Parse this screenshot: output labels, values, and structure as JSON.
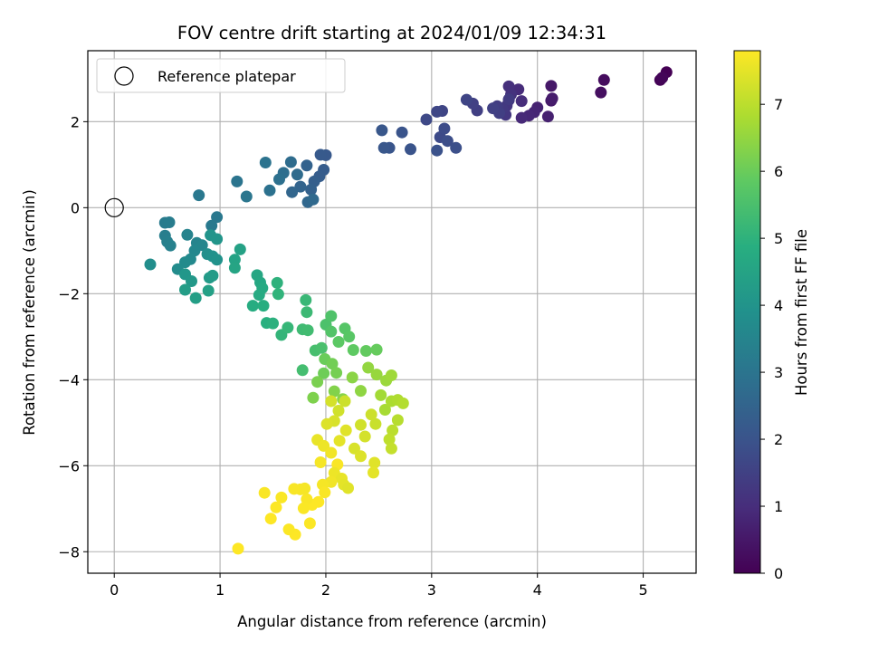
{
  "chart_data": {
    "type": "scatter",
    "title": "FOV centre drift starting at 2024/01/09 12:34:31",
    "xlabel": "Angular distance from reference (arcmin)",
    "ylabel": "Rotation from reference (arcmin)",
    "xlim": [
      -0.25,
      5.5
    ],
    "ylim": [
      -8.5,
      3.65
    ],
    "xticks": [
      0,
      1,
      2,
      3,
      4,
      5
    ],
    "yticks": [
      -8,
      -6,
      -4,
      -2,
      0,
      2
    ],
    "grid": true,
    "legend": {
      "placement": "upper-left",
      "entries": [
        "Reference platepar"
      ]
    },
    "reference_point": {
      "x": 0,
      "y": 0
    },
    "colorbar": {
      "label": "Hours from first FF file",
      "colormap": "viridis",
      "range": [
        0,
        7.8
      ],
      "ticks": [
        0,
        1,
        2,
        3,
        4,
        5,
        6,
        7
      ]
    },
    "series": [
      {
        "color_by": "Hours from first FF file",
        "points": [
          [
            5.22,
            3.15,
            0.0
          ],
          [
            5.16,
            2.97,
            0.05
          ],
          [
            5.18,
            3.02,
            0.1
          ],
          [
            4.63,
            2.97,
            0.25
          ],
          [
            4.6,
            2.68,
            0.3
          ],
          [
            4.13,
            2.83,
            0.5
          ],
          [
            4.13,
            2.49,
            0.55
          ],
          [
            4.14,
            2.54,
            0.6
          ],
          [
            4.1,
            2.12,
            0.7
          ],
          [
            4.0,
            2.33,
            0.75
          ],
          [
            3.97,
            2.22,
            0.8
          ],
          [
            3.92,
            2.14,
            0.85
          ],
          [
            3.85,
            2.09,
            0.9
          ],
          [
            3.82,
            2.75,
            0.95
          ],
          [
            3.85,
            2.48,
            1.0
          ],
          [
            3.73,
            2.82,
            1.05
          ],
          [
            3.75,
            2.63,
            1.1
          ],
          [
            3.73,
            2.5,
            1.15
          ],
          [
            3.71,
            2.37,
            1.2
          ],
          [
            3.7,
            2.16,
            1.25
          ],
          [
            3.67,
            2.3,
            1.3
          ],
          [
            3.73,
            2.52,
            1.35
          ],
          [
            3.62,
            2.36,
            1.4
          ],
          [
            3.64,
            2.2,
            1.45
          ],
          [
            3.58,
            2.31,
            1.5
          ],
          [
            3.43,
            2.26,
            1.45
          ],
          [
            3.39,
            2.42,
            1.5
          ],
          [
            3.33,
            2.51,
            1.6
          ],
          [
            3.1,
            2.25,
            1.6
          ],
          [
            3.05,
            2.23,
            1.65
          ],
          [
            2.95,
            2.05,
            1.7
          ],
          [
            3.08,
            1.64,
            1.75
          ],
          [
            3.12,
            1.84,
            1.8
          ],
          [
            3.15,
            1.55,
            1.85
          ],
          [
            3.23,
            1.39,
            1.9
          ],
          [
            3.05,
            1.33,
            1.95
          ],
          [
            2.8,
            1.36,
            2.0
          ],
          [
            2.72,
            1.75,
            2.0
          ],
          [
            2.6,
            1.39,
            2.05
          ],
          [
            2.55,
            1.39,
            2.1
          ],
          [
            2.53,
            1.8,
            2.1
          ],
          [
            2.0,
            1.22,
            2.15
          ],
          [
            1.95,
            1.23,
            2.2
          ],
          [
            1.98,
            0.88,
            2.25
          ],
          [
            1.94,
            0.73,
            2.3
          ],
          [
            1.89,
            0.61,
            2.35
          ],
          [
            1.86,
            0.42,
            2.4
          ],
          [
            1.82,
            0.98,
            2.45
          ],
          [
            1.76,
            0.49,
            2.5
          ],
          [
            1.68,
            0.36,
            2.55
          ],
          [
            1.83,
            0.13,
            2.6
          ],
          [
            1.88,
            0.19,
            2.65
          ],
          [
            1.73,
            0.77,
            2.7
          ],
          [
            1.67,
            1.06,
            2.75
          ],
          [
            1.6,
            0.81,
            2.8
          ],
          [
            1.56,
            0.66,
            2.85
          ],
          [
            1.47,
            0.4,
            2.9
          ],
          [
            1.43,
            1.05,
            2.95
          ],
          [
            1.16,
            0.61,
            3.0
          ],
          [
            1.25,
            0.26,
            3.05
          ],
          [
            0.8,
            0.29,
            3.1
          ],
          [
            0.97,
            -0.22,
            3.1
          ],
          [
            0.92,
            -0.42,
            3.15
          ],
          [
            0.48,
            -0.35,
            3.2
          ],
          [
            0.52,
            -0.34,
            3.25
          ],
          [
            0.48,
            -0.65,
            3.3
          ],
          [
            0.5,
            -0.79,
            3.35
          ],
          [
            0.53,
            -0.88,
            3.4
          ],
          [
            0.69,
            -0.63,
            3.45
          ],
          [
            0.78,
            -0.82,
            3.5
          ],
          [
            0.83,
            -0.87,
            3.55
          ],
          [
            0.76,
            -1.0,
            3.6
          ],
          [
            0.72,
            -1.2,
            3.65
          ],
          [
            0.67,
            -1.27,
            3.7
          ],
          [
            0.6,
            -1.43,
            3.75
          ],
          [
            0.34,
            -1.32,
            3.8
          ],
          [
            0.88,
            -1.08,
            3.85
          ],
          [
            0.93,
            -1.13,
            3.9
          ],
          [
            0.97,
            -1.21,
            3.95
          ],
          [
            0.91,
            -0.64,
            4.0
          ],
          [
            0.97,
            -0.73,
            4.05
          ],
          [
            0.67,
            -1.55,
            4.1
          ],
          [
            0.73,
            -1.71,
            4.15
          ],
          [
            0.9,
            -1.63,
            4.2
          ],
          [
            0.93,
            -1.58,
            4.25
          ],
          [
            0.67,
            -1.91,
            4.3
          ],
          [
            0.77,
            -2.1,
            4.35
          ],
          [
            0.89,
            -1.93,
            4.4
          ],
          [
            1.19,
            -0.97,
            4.45
          ],
          [
            1.14,
            -1.21,
            4.5
          ],
          [
            1.14,
            -1.4,
            4.55
          ],
          [
            1.35,
            -1.57,
            4.6
          ],
          [
            1.38,
            -1.74,
            4.65
          ],
          [
            1.4,
            -1.87,
            4.7
          ],
          [
            1.37,
            -2.03,
            4.75
          ],
          [
            1.31,
            -2.28,
            4.8
          ],
          [
            1.41,
            -2.28,
            4.85
          ],
          [
            1.44,
            -2.68,
            4.9
          ],
          [
            1.5,
            -2.69,
            4.95
          ],
          [
            1.54,
            -1.75,
            5.0
          ],
          [
            1.55,
            -2.01,
            5.05
          ],
          [
            1.58,
            -2.96,
            5.1
          ],
          [
            1.64,
            -2.79,
            5.15
          ],
          [
            1.81,
            -2.15,
            5.2
          ],
          [
            1.82,
            -2.43,
            5.25
          ],
          [
            1.78,
            -2.83,
            5.3
          ],
          [
            1.83,
            -2.85,
            5.35
          ],
          [
            1.78,
            -3.78,
            5.4
          ],
          [
            1.9,
            -3.32,
            5.45
          ],
          [
            1.96,
            -3.26,
            5.5
          ],
          [
            2.0,
            -2.72,
            5.55
          ],
          [
            2.05,
            -2.52,
            5.6
          ],
          [
            2.05,
            -2.88,
            5.65
          ],
          [
            2.18,
            -2.81,
            5.7
          ],
          [
            2.22,
            -3.0,
            5.75
          ],
          [
            2.12,
            -3.12,
            5.8
          ],
          [
            2.26,
            -3.31,
            5.85
          ],
          [
            2.38,
            -3.33,
            5.9
          ],
          [
            2.48,
            -3.3,
            5.95
          ],
          [
            1.99,
            -3.52,
            6.0
          ],
          [
            1.98,
            -3.85,
            6.05
          ],
          [
            2.06,
            -3.63,
            6.1
          ],
          [
            2.1,
            -3.84,
            6.15
          ],
          [
            1.92,
            -4.05,
            6.2
          ],
          [
            1.88,
            -4.42,
            6.25
          ],
          [
            2.08,
            -4.27,
            6.3
          ],
          [
            2.16,
            -4.45,
            6.35
          ],
          [
            2.25,
            -3.95,
            6.4
          ],
          [
            2.33,
            -4.26,
            6.45
          ],
          [
            2.4,
            -3.72,
            6.5
          ],
          [
            2.48,
            -3.88,
            6.55
          ],
          [
            2.57,
            -4.02,
            6.6
          ],
          [
            2.62,
            -3.9,
            6.65
          ],
          [
            2.52,
            -4.36,
            6.7
          ],
          [
            2.56,
            -4.7,
            6.75
          ],
          [
            2.62,
            -4.5,
            6.8
          ],
          [
            2.68,
            -4.47,
            6.85
          ],
          [
            2.73,
            -4.55,
            6.9
          ],
          [
            2.68,
            -4.94,
            6.95
          ],
          [
            2.63,
            -5.18,
            7.0
          ],
          [
            2.6,
            -5.39,
            7.05
          ],
          [
            2.62,
            -5.6,
            7.1
          ],
          [
            2.47,
            -5.03,
            7.15
          ],
          [
            2.43,
            -4.81,
            7.2
          ],
          [
            2.33,
            -5.05,
            7.25
          ],
          [
            2.37,
            -5.32,
            7.3
          ],
          [
            2.27,
            -5.6,
            7.35
          ],
          [
            2.33,
            -5.78,
            7.4
          ],
          [
            2.46,
            -5.93,
            7.45
          ],
          [
            2.45,
            -6.16,
            7.5
          ],
          [
            2.18,
            -4.5,
            7.2
          ],
          [
            2.12,
            -4.72,
            7.25
          ],
          [
            2.05,
            -4.5,
            7.3
          ],
          [
            2.08,
            -4.96,
            7.35
          ],
          [
            2.01,
            -5.03,
            7.4
          ],
          [
            2.19,
            -5.18,
            7.45
          ],
          [
            2.13,
            -5.42,
            7.5
          ],
          [
            1.92,
            -5.4,
            7.55
          ],
          [
            1.98,
            -5.54,
            7.6
          ],
          [
            2.05,
            -5.7,
            7.65
          ],
          [
            1.95,
            -5.92,
            7.7
          ],
          [
            2.11,
            -5.97,
            7.75
          ],
          [
            2.08,
            -6.17,
            7.6
          ],
          [
            2.15,
            -6.3,
            7.55
          ],
          [
            2.17,
            -6.44,
            7.5
          ],
          [
            2.21,
            -6.52,
            7.45
          ],
          [
            2.05,
            -6.38,
            7.65
          ],
          [
            1.97,
            -6.44,
            7.7
          ],
          [
            1.99,
            -6.62,
            7.75
          ],
          [
            1.93,
            -6.84,
            7.8
          ],
          [
            1.87,
            -6.91,
            7.8
          ],
          [
            1.82,
            -6.78,
            7.75
          ],
          [
            1.8,
            -6.53,
            7.7
          ],
          [
            1.76,
            -6.55,
            7.72
          ],
          [
            1.7,
            -6.54,
            7.74
          ],
          [
            1.79,
            -6.99,
            7.76
          ],
          [
            1.85,
            -7.34,
            7.78
          ],
          [
            1.71,
            -7.6,
            7.8
          ],
          [
            1.65,
            -7.48,
            7.78
          ],
          [
            1.58,
            -6.74,
            7.76
          ],
          [
            1.53,
            -6.97,
            7.79
          ],
          [
            1.48,
            -7.23,
            7.8
          ],
          [
            1.42,
            -6.63,
            7.75
          ],
          [
            1.17,
            -7.93,
            7.8
          ]
        ]
      }
    ]
  }
}
